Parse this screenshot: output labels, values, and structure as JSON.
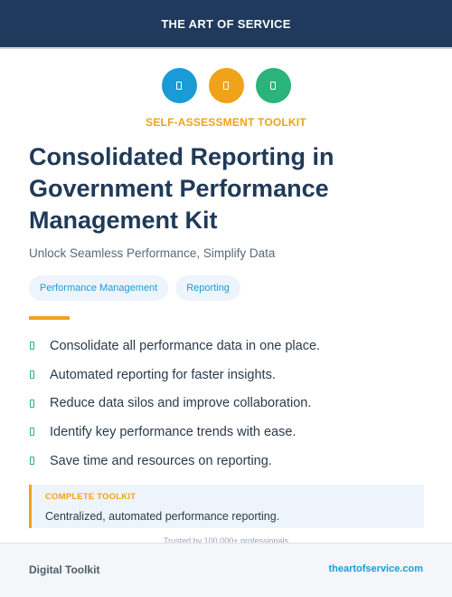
{
  "colors": {
    "navy": "#1f3a5c",
    "accent_orange": "#f0a21b",
    "blue": "#1a9bd7",
    "green": "#2ab37a"
  },
  "header": {
    "brand": "THE ART OF SERVICE"
  },
  "icons": [
    {
      "name": "blue-circle-icon",
      "color": "#1a9bd7"
    },
    {
      "name": "orange-circle-icon",
      "color": "#f0a21b"
    },
    {
      "name": "green-circle-icon",
      "color": "#2ab37a"
    }
  ],
  "eyebrow": "SELF-ASSESSMENT TOOLKIT",
  "title": "Consolidated Reporting in Government Performance Management Kit",
  "subtitle": "Unlock Seamless Performance, Simplify Data",
  "tags": [
    "Performance Management",
    "Reporting"
  ],
  "features": [
    "Consolidate all performance data in one place.",
    "Automated reporting for faster insights.",
    "Reduce data silos and improve collaboration.",
    "Identify key performance trends with ease.",
    "Save time and resources on reporting."
  ],
  "callout": {
    "label": "COMPLETE TOOLKIT",
    "text": "Centralized, automated performance reporting."
  },
  "trusted": "Trusted by 100,000+ professionals",
  "footer": {
    "left": "Digital Toolkit",
    "right": "theartofservice.com"
  }
}
